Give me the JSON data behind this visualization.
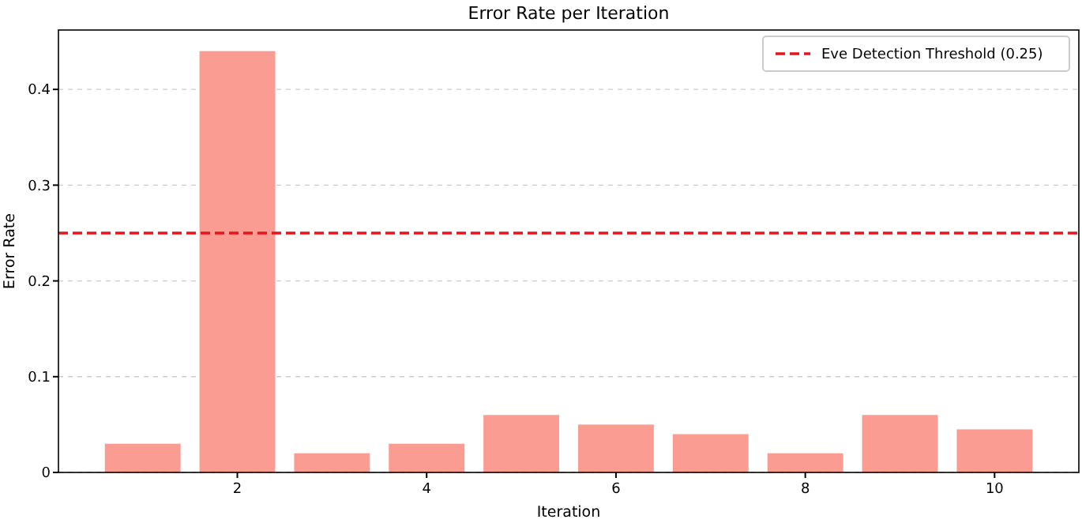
{
  "chart_data": {
    "type": "bar",
    "title": "Error Rate per Iteration",
    "xlabel": "Iteration",
    "ylabel": "Error Rate",
    "x": [
      1,
      2,
      3,
      4,
      5,
      6,
      7,
      8,
      9,
      10
    ],
    "values": [
      0.03,
      0.44,
      0.02,
      0.03,
      0.06,
      0.05,
      0.04,
      0.02,
      0.06,
      0.045
    ],
    "color": "#fa9c92",
    "xlim": [
      0.11,
      10.89
    ],
    "xticks": [
      2,
      4,
      6,
      8,
      10
    ],
    "ylim": [
      0,
      0.462
    ],
    "yticks": [
      0.0,
      {
        "value": 0.1,
        "label": "0.1"
      },
      {
        "value": 0.2,
        "label": "0.2"
      },
      {
        "value": 0.3,
        "label": "0.3"
      },
      {
        "value": 0.4,
        "label": "0.4"
      }
    ],
    "grid": "y",
    "legend": "top right",
    "ref_lines": [
      {
        "axis": "y",
        "value": 0.25,
        "label": "Eve Detection Threshold (0.25)",
        "color": "#e8141a",
        "line_style": "dashed"
      }
    ]
  }
}
